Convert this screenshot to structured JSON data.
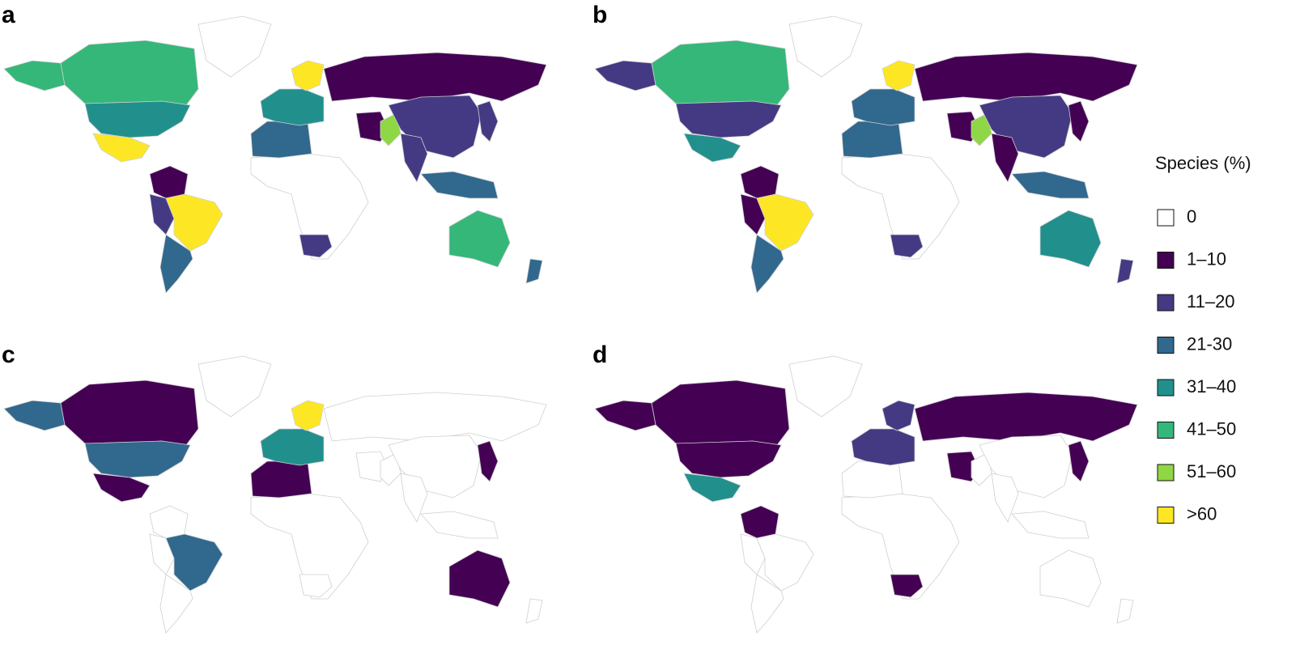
{
  "panels": [
    {
      "label": "a"
    },
    {
      "label": "b"
    },
    {
      "label": "c"
    },
    {
      "label": "d"
    }
  ],
  "legend": {
    "title": "Species (%)",
    "items": [
      {
        "label": "0",
        "color": "#ffffff"
      },
      {
        "label": "1–10",
        "color": "#440154"
      },
      {
        "label": "11–20",
        "color": "#443a83"
      },
      {
        "label": "21-30",
        "color": "#31688e"
      },
      {
        "label": "31–40",
        "color": "#21908d"
      },
      {
        "label": "41–50",
        "color": "#35b779"
      },
      {
        "label": "51–60",
        "color": "#8fd744"
      },
      {
        "label": ">60",
        "color": "#fde725"
      }
    ]
  }
}
